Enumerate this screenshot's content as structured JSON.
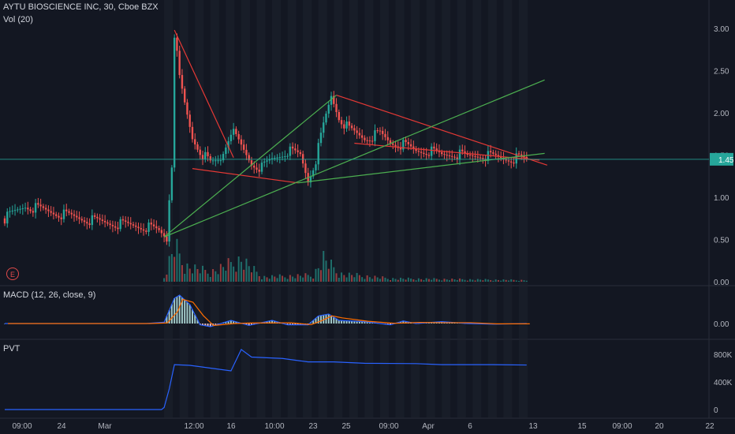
{
  "header": {
    "symbol_line": "AYTU BIOSCIENCE INC, 30, Cboe BZX",
    "volume_label": "Vol (20)",
    "macd_label": "MACD (12, 26, close, 9)",
    "pvt_label": "PVT",
    "earnings_badge": "E"
  },
  "colors": {
    "background": "#131722",
    "up": "#26a69a",
    "down": "#ef5350",
    "trend_red": "#e53935",
    "trend_green": "#4caf50",
    "macd_line": "#2962ff",
    "signal_line": "#ff6d00",
    "pvt_line": "#2962ff",
    "price_marker": "#26a69a"
  },
  "chart_data": [
    {
      "type": "candlestick",
      "price_axis_ticks": [
        "3.00",
        "2.50",
        "2.00",
        "1.50",
        "1.00",
        "0.50",
        "0.00"
      ],
      "last_price_label": "1.45",
      "x_tick_labels": [
        "09:00",
        "24",
        "Mar",
        "12:00",
        "16",
        "10:00",
        "23",
        "25",
        "09:00",
        "Apr",
        "6",
        "13",
        "15",
        "09:00",
        "20",
        "22"
      ],
      "ylim": [
        0,
        3.15
      ],
      "price_path": [
        [
          0,
          0.75
        ],
        [
          8,
          0.9
        ],
        [
          15,
          0.85
        ],
        [
          25,
          0.78
        ],
        [
          35,
          0.72
        ],
        [
          45,
          0.68
        ],
        [
          55,
          0.65
        ],
        [
          60,
          0.6
        ],
        [
          62,
          0.55
        ],
        [
          63,
          0.5
        ],
        [
          64,
          1.0
        ],
        [
          65,
          1.4
        ],
        [
          66,
          2.95
        ],
        [
          68,
          2.4
        ],
        [
          70,
          2.1
        ],
        [
          73,
          1.7
        ],
        [
          76,
          1.55
        ],
        [
          80,
          1.4
        ],
        [
          84,
          1.45
        ],
        [
          88,
          1.8
        ],
        [
          92,
          1.6
        ],
        [
          96,
          1.4
        ],
        [
          100,
          1.35
        ],
        [
          104,
          1.45
        ],
        [
          110,
          1.55
        ],
        [
          115,
          1.5
        ],
        [
          118,
          1.2
        ],
        [
          121,
          1.45
        ],
        [
          124,
          1.85
        ],
        [
          127,
          2.2
        ],
        [
          130,
          1.95
        ],
        [
          134,
          1.8
        ],
        [
          140,
          1.7
        ],
        [
          146,
          1.75
        ],
        [
          150,
          1.65
        ],
        [
          155,
          1.62
        ],
        [
          160,
          1.55
        ],
        [
          165,
          1.55
        ],
        [
          170,
          1.5
        ],
        [
          175,
          1.52
        ],
        [
          180,
          1.48
        ],
        [
          185,
          1.5
        ],
        [
          190,
          1.48
        ],
        [
          195,
          1.46
        ],
        [
          200,
          1.46
        ],
        [
          203,
          1.45
        ]
      ],
      "volume_path": [
        [
          62,
          0.05
        ],
        [
          64,
          0.25
        ],
        [
          66,
          0.45
        ],
        [
          70,
          0.2
        ],
        [
          80,
          0.12
        ],
        [
          92,
          0.28
        ],
        [
          100,
          0.06
        ],
        [
          120,
          0.08
        ],
        [
          124,
          0.3
        ],
        [
          130,
          0.1
        ],
        [
          150,
          0.04
        ],
        [
          200,
          0.02
        ]
      ],
      "trend_lines": {
        "red": [
          {
            "x1": 66,
            "y1": 2.98,
            "x2": 89,
            "y2": 1.47
          },
          {
            "x1": 73,
            "y1": 1.34,
            "x2": 114,
            "y2": 1.17
          },
          {
            "x1": 129,
            "y1": 2.21,
            "x2": 211,
            "y2": 1.38
          },
          {
            "x1": 136,
            "y1": 1.64,
            "x2": 208,
            "y2": 1.44
          }
        ],
        "green": [
          {
            "x1": 62,
            "y1": 0.53,
            "x2": 129,
            "y2": 2.21
          },
          {
            "x1": 62,
            "y1": 0.53,
            "x2": 210,
            "y2": 2.39
          },
          {
            "x1": 114,
            "y1": 1.17,
            "x2": 210,
            "y2": 1.52
          }
        ],
        "horizontal": [
          {
            "y": 1.45
          }
        ]
      }
    },
    {
      "type": "line",
      "name": "MACD (12, 26, close, 9)",
      "ticks": [
        "0.00"
      ],
      "ylim": [
        -0.3,
        0.5
      ],
      "macd_path": [
        [
          0,
          0
        ],
        [
          55,
          0
        ],
        [
          62,
          0.02
        ],
        [
          66,
          0.4
        ],
        [
          68,
          0.45
        ],
        [
          72,
          0.3
        ],
        [
          76,
          -0.02
        ],
        [
          80,
          -0.05
        ],
        [
          88,
          0.05
        ],
        [
          95,
          -0.03
        ],
        [
          104,
          0.05
        ],
        [
          110,
          -0.02
        ],
        [
          118,
          -0.02
        ],
        [
          122,
          0.12
        ],
        [
          126,
          0.15
        ],
        [
          130,
          0.05
        ],
        [
          140,
          0.03
        ],
        [
          150,
          -0.02
        ],
        [
          155,
          0.04
        ],
        [
          160,
          0.0
        ],
        [
          170,
          0.03
        ],
        [
          180,
          0.0
        ],
        [
          190,
          -0.01
        ],
        [
          203,
          0.0
        ]
      ]
    },
    {
      "type": "line",
      "name": "PVT",
      "ticks": [
        "800K",
        "400K",
        "0"
      ],
      "ylim": [
        -50000,
        950000
      ],
      "pvt_path": [
        [
          0,
          0
        ],
        [
          61,
          0
        ],
        [
          62,
          30000
        ],
        [
          64,
          300000
        ],
        [
          66,
          650000
        ],
        [
          72,
          640000
        ],
        [
          80,
          600000
        ],
        [
          88,
          560000
        ],
        [
          92,
          870000
        ],
        [
          96,
          760000
        ],
        [
          108,
          740000
        ],
        [
          118,
          690000
        ],
        [
          128,
          690000
        ],
        [
          140,
          670000
        ],
        [
          160,
          665000
        ],
        [
          170,
          650000
        ],
        [
          190,
          650000
        ],
        [
          203,
          645000
        ]
      ]
    }
  ]
}
